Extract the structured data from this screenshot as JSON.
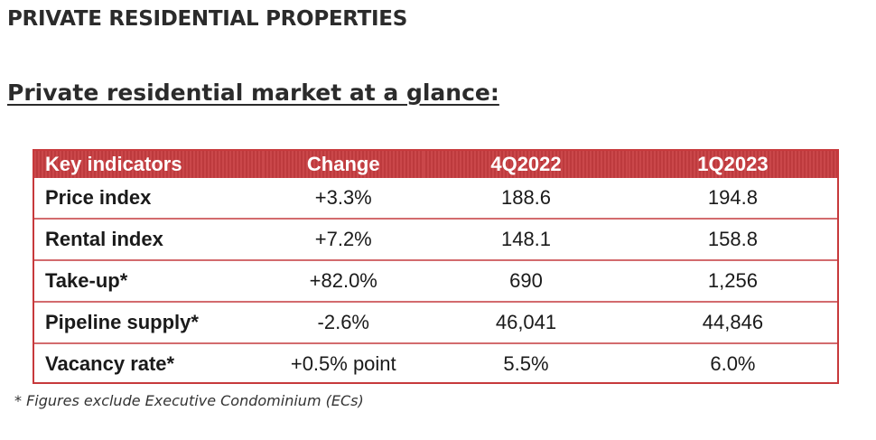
{
  "heading": "PRIVATE RESIDENTIAL PROPERTIES",
  "subheading": "Private residential market at a glance:",
  "table": {
    "headers": [
      "Key indicators",
      "Change",
      "4Q2022",
      "1Q2023"
    ],
    "rows": [
      {
        "indicator": "Price index",
        "change": "+3.3%",
        "q4_2022": "188.6",
        "q1_2023": "194.8"
      },
      {
        "indicator": "Rental index",
        "change": "+7.2%",
        "q4_2022": "148.1",
        "q1_2023": "158.8"
      },
      {
        "indicator": "Take-up*",
        "change": "+82.0%",
        "q4_2022": "690",
        "q1_2023": "1,256"
      },
      {
        "indicator": "Pipeline supply*",
        "change": "-2.6%",
        "q4_2022": "46,041",
        "q1_2023": "44,846"
      },
      {
        "indicator": "Vacancy rate*",
        "change": "+0.5% point",
        "q4_2022": "5.5%",
        "q1_2023": "6.0%"
      }
    ]
  },
  "footnote": "* Figures exclude Executive Condominium (ECs)",
  "colors": {
    "header_bg": "#c73d40",
    "row_border": "#d36b6e",
    "positive_change": "#2e9b4a",
    "negative_change": "#d62d2d"
  }
}
